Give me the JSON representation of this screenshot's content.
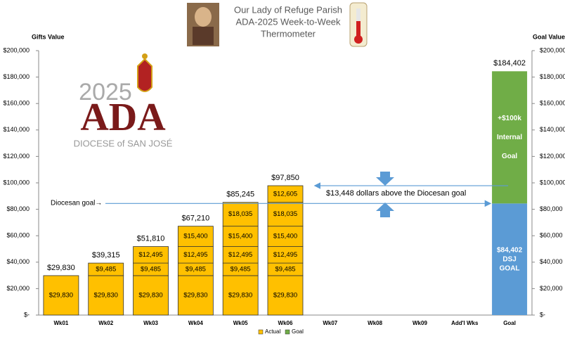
{
  "chart_data": {
    "type": "stacked-bar",
    "title": [
      "Our Lady of Refuge Parish",
      "ADA-2025 Week-to-Week",
      "Thermometer"
    ],
    "y_label": "Gifts Value",
    "y2_label": "Goal Value",
    "categories": [
      "Wk01",
      "Wk02",
      "Wk03",
      "Wk04",
      "Wk05",
      "Wk06",
      "Wk07",
      "Wk08",
      "Wk09",
      "Add'l Wks",
      "Goal"
    ],
    "series": [
      {
        "color": "#ffc000",
        "values": [
          29830,
          29830,
          29830,
          29830,
          29830,
          29830,
          null,
          null,
          null,
          null,
          null
        ],
        "value_labels": [
          "$29,830",
          "$29,830",
          "$29,830",
          "$29,830",
          "$29,830",
          "$29,830",
          null,
          null,
          null,
          null,
          null
        ]
      },
      {
        "color": "#ffc000",
        "values": [
          null,
          9485,
          9485,
          9485,
          9485,
          9485,
          null,
          null,
          null,
          null,
          null
        ],
        "value_labels": [
          null,
          "$9,485",
          "$9,485",
          "$9,485",
          "$9,485",
          "$9,485",
          null,
          null,
          null,
          null,
          null
        ]
      },
      {
        "color": "#ffc000",
        "values": [
          null,
          null,
          12495,
          12495,
          12495,
          12495,
          null,
          null,
          null,
          null,
          null
        ],
        "value_labels": [
          null,
          null,
          "$12,495",
          "$12,495",
          "$12,495",
          "$12,495",
          null,
          null,
          null,
          null,
          null
        ]
      },
      {
        "color": "#ffc000",
        "values": [
          null,
          null,
          null,
          15400,
          15400,
          15400,
          null,
          null,
          null,
          null,
          null
        ],
        "value_labels": [
          null,
          null,
          null,
          "$15,400",
          "$15,400",
          "$15,400",
          null,
          null,
          null,
          null,
          null
        ]
      },
      {
        "color": "#ffc000",
        "values": [
          null,
          null,
          null,
          null,
          18035,
          18035,
          null,
          null,
          null,
          null,
          null
        ],
        "value_labels": [
          null,
          null,
          null,
          null,
          "$18,035",
          "$18,035",
          null,
          null,
          null,
          null,
          null
        ]
      },
      {
        "color": "#ffc000",
        "values": [
          null,
          null,
          null,
          null,
          null,
          12605,
          null,
          null,
          null,
          null,
          null
        ],
        "value_labels": [
          null,
          null,
          null,
          null,
          null,
          "$12,605",
          null,
          null,
          null,
          null,
          null
        ]
      },
      {
        "color": "#5b9bd5",
        "values": [
          null,
          null,
          null,
          null,
          null,
          null,
          null,
          null,
          null,
          null,
          84402
        ],
        "value_labels": [
          null,
          null,
          null,
          null,
          null,
          null,
          null,
          null,
          null,
          null,
          "$84,402"
        ],
        "inner_lines": [
          "DSJ",
          "GOAL"
        ]
      },
      {
        "color": "#70ad47",
        "values": [
          null,
          null,
          null,
          null,
          null,
          null,
          null,
          null,
          null,
          null,
          100000
        ],
        "value_labels": [
          null,
          null,
          null,
          null,
          null,
          null,
          null,
          null,
          null,
          null,
          "+$100k"
        ],
        "inner_lines": [
          "Internal",
          "Goal"
        ]
      }
    ],
    "totals": [
      29830,
      39315,
      51810,
      67210,
      85245,
      97850,
      null,
      null,
      null,
      null,
      184402
    ],
    "total_labels": [
      "$29,830",
      "$39,315",
      "$51,810",
      "$67,210",
      "$85,245",
      "$97,850",
      null,
      null,
      null,
      null,
      "$184,402"
    ],
    "ylim": [
      0,
      200000
    ],
    "yticks": [
      {
        "value": 0,
        "label": "$-"
      },
      {
        "value": 20000,
        "label": "$20,000"
      },
      {
        "value": 40000,
        "label": "$40,000"
      },
      {
        "value": 60000,
        "label": "$60,000"
      },
      {
        "value": 80000,
        "label": "$80,000"
      },
      {
        "value": 100000,
        "label": "$100,000"
      },
      {
        "value": 120000,
        "label": "$120,000"
      },
      {
        "value": 140000,
        "label": "$140,000"
      },
      {
        "value": 160000,
        "label": "$160,000"
      },
      {
        "value": 180000,
        "label": "$180,000"
      },
      {
        "value": 200000,
        "label": "$200,000"
      }
    ],
    "y2lim": [
      0,
      200000
    ],
    "y2ticks": [
      {
        "value": 0,
        "label": "$-"
      },
      {
        "value": 20000,
        "label": "$20,000"
      },
      {
        "value": 40000,
        "label": "$40,000"
      },
      {
        "value": 60000,
        "label": "$60,000"
      },
      {
        "value": 80000,
        "label": "$80,000"
      },
      {
        "value": 100000,
        "label": "$100,000"
      },
      {
        "value": 120000,
        "label": "$120,000"
      },
      {
        "value": 140000,
        "label": "$140,000"
      },
      {
        "value": 160000,
        "label": "$160,000"
      },
      {
        "value": 180000,
        "label": "$180,000"
      },
      {
        "value": 200000,
        "label": "$200,000"
      }
    ],
    "grid": false,
    "legend": [
      {
        "name": "Actual",
        "color": "#ffc000"
      },
      {
        "name": "Goal",
        "color": "#70ad47"
      }
    ],
    "annotations": {
      "diocesan_goal": "Diocesan goal→",
      "above_goal": "$13,448 dollars above the Diocesan goal"
    },
    "logo": {
      "year": "2025",
      "name": "ADA",
      "diocese": "DIOCESE of SAN JOSÉ"
    }
  }
}
